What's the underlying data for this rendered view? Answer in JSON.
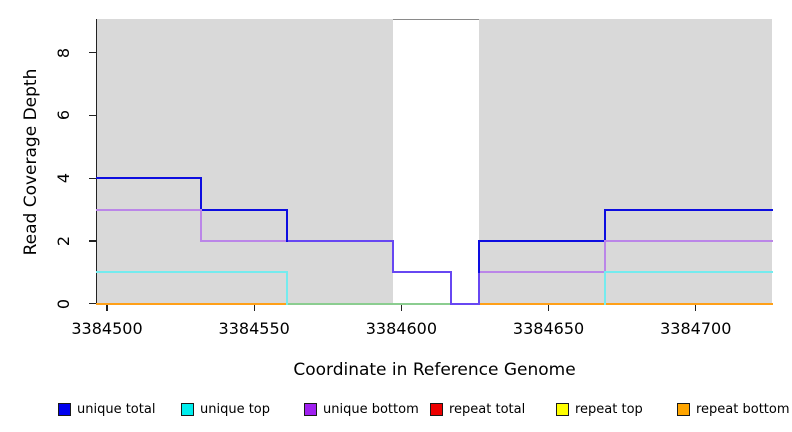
{
  "chart_data": {
    "type": "line",
    "subtype": "step-post",
    "title": "",
    "xlabel": "Coordinate in Reference Genome",
    "ylabel": "Read Coverage Depth",
    "xlim": [
      3384496.6,
      3384725.9
    ],
    "ylim": [
      0,
      9.07
    ],
    "x_ticks": [
      3384500,
      3384550,
      3384600,
      3384650,
      3384700
    ],
    "y_ticks": [
      0,
      2,
      4,
      6,
      8
    ],
    "grid": false,
    "legend_position": "bottom",
    "plot_bg_color": "#d9d9d9",
    "axis_color": "#222222",
    "masked_region": {
      "x1": 3384597,
      "x2": 3384626.5,
      "fill": "#ffffff",
      "top_line_color": "#8a8a8a"
    },
    "series": [
      {
        "name": "unique total",
        "legend_color": "#0000ee",
        "line_color": "#0d0de0",
        "steps": [
          [
            3384496.6,
            4
          ],
          [
            3384532,
            3
          ],
          [
            3384561,
            2
          ],
          [
            3384597,
            1
          ],
          [
            3384617,
            0
          ],
          [
            3384626.5,
            2
          ],
          [
            3384669,
            3
          ]
        ],
        "x_end": 3384725.9
      },
      {
        "name": "unique top",
        "legend_color": "#00eeee",
        "line_color": "#74ebee",
        "steps": [
          [
            3384496.6,
            1
          ],
          [
            3384561,
            0
          ],
          [
            3384669,
            1
          ]
        ],
        "x_end": 3384725.9
      },
      {
        "name": "unique bottom",
        "legend_color": "#a020f0",
        "line_color": "#bb86e8",
        "steps": [
          [
            3384496.6,
            3
          ],
          [
            3384532,
            2
          ],
          [
            3384597,
            1
          ],
          [
            3384617,
            0
          ],
          [
            3384626.5,
            1
          ],
          [
            3384669,
            2
          ]
        ],
        "x_end": 3384725.9
      },
      {
        "name": "repeat total",
        "legend_color": "#ee0000",
        "line_color": "#ee0000",
        "steps": [
          [
            3384496.6,
            0
          ]
        ],
        "x_end": 3384725.9
      },
      {
        "name": "repeat top",
        "legend_color": "#ffff00",
        "line_color": "#ffff00",
        "steps": [
          [
            3384496.6,
            0
          ]
        ],
        "x_end": 3384725.9
      },
      {
        "name": "repeat bottom",
        "legend_color": "#ffa500",
        "line_color": "#ffa018",
        "steps": [
          [
            3384496.6,
            0
          ]
        ],
        "x_end": 3384725.9
      }
    ],
    "overlap_colors": {
      "unique_total_plus_unique_bottom": "#6747f2",
      "unique_top_plus_repeat_bottom": "#8bcd90"
    },
    "visible_segments": {
      "horizontal": [
        {
          "x1": 3384496.6,
          "x2": 3384561,
          "v": 0,
          "color": "#ffa018"
        },
        {
          "x1": 3384561,
          "x2": 3384617,
          "v": 0,
          "color": "#8bcd90"
        },
        {
          "x1": 3384617,
          "x2": 3384626.5,
          "v": 0,
          "color": "#6747f2"
        },
        {
          "x1": 3384626.5,
          "x2": 3384725.9,
          "v": 0,
          "color": "#ffa018"
        },
        {
          "x1": 3384496.6,
          "x2": 3384561,
          "v": 1,
          "color": "#74ebee"
        },
        {
          "x1": 3384597,
          "x2": 3384617,
          "v": 1,
          "color": "#6747f2"
        },
        {
          "x1": 3384626.5,
          "x2": 3384669,
          "v": 1,
          "color": "#bb86e8"
        },
        {
          "x1": 3384669,
          "x2": 3384725.9,
          "v": 1,
          "color": "#74ebee"
        },
        {
          "x1": 3384532,
          "x2": 3384561,
          "v": 2,
          "color": "#bb86e8"
        },
        {
          "x1": 3384561,
          "x2": 3384597,
          "v": 2,
          "color": "#6747f2"
        },
        {
          "x1": 3384626.5,
          "x2": 3384669,
          "v": 2,
          "color": "#0d0de0"
        },
        {
          "x1": 3384669,
          "x2": 3384725.9,
          "v": 2,
          "color": "#bb86e8"
        },
        {
          "x1": 3384496.6,
          "x2": 3384532,
          "v": 3,
          "color": "#bb86e8"
        },
        {
          "x1": 3384532,
          "x2": 3384561,
          "v": 3,
          "color": "#0d0de0"
        },
        {
          "x1": 3384669,
          "x2": 3384725.9,
          "v": 3,
          "color": "#0d0de0"
        },
        {
          "x1": 3384496.6,
          "x2": 3384532,
          "v": 4,
          "color": "#0d0de0"
        }
      ],
      "vertical": [
        {
          "x": 3384532,
          "v1": 3,
          "v2": 4,
          "color": "#0d0de0"
        },
        {
          "x": 3384532,
          "v1": 2,
          "v2": 3,
          "color": "#bb86e8"
        },
        {
          "x": 3384561,
          "v1": 2,
          "v2": 3,
          "color": "#0d0de0"
        },
        {
          "x": 3384561,
          "v1": 0,
          "v2": 1,
          "color": "#74ebee"
        },
        {
          "x": 3384597,
          "v1": 1,
          "v2": 2,
          "color": "#6747f2"
        },
        {
          "x": 3384617,
          "v1": 0,
          "v2": 1,
          "color": "#6747f2"
        },
        {
          "x": 3384626.5,
          "v1": 0,
          "v2": 1,
          "color": "#6747f2"
        },
        {
          "x": 3384626.5,
          "v1": 1,
          "v2": 2,
          "color": "#0d0de0"
        },
        {
          "x": 3384669,
          "v1": 2,
          "v2": 3,
          "color": "#0d0de0"
        },
        {
          "x": 3384669,
          "v1": 1,
          "v2": 2,
          "color": "#bb86e8"
        },
        {
          "x": 3384669,
          "v1": 0,
          "v2": 1,
          "color": "#74ebee"
        }
      ]
    }
  }
}
